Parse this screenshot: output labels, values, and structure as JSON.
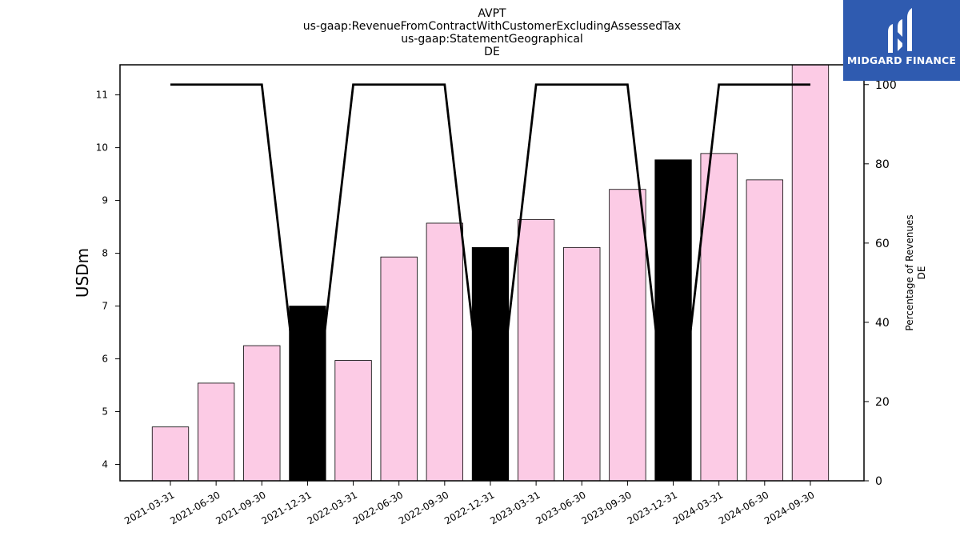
{
  "logo": {
    "text": "MIDGARD FINANCE",
    "icon": "midgard-logo-icon",
    "background": "#2f5bb0"
  },
  "chart_data": {
    "type": "bar",
    "title_lines": [
      "AVPT",
      "us-gaap:RevenueFromContractWithCustomerExcludingAssessedTax",
      "us-gaap:StatementGeographical",
      "DE"
    ],
    "categories": [
      "2021-03-31",
      "2021-06-30",
      "2021-09-30",
      "2021-12-31",
      "2022-03-31",
      "2022-06-30",
      "2022-09-30",
      "2022-12-31",
      "2023-03-31",
      "2023-06-30",
      "2023-09-30",
      "2023-12-31",
      "2024-03-31",
      "2024-06-30",
      "2024-09-30"
    ],
    "series": [
      {
        "type": "bar",
        "values": [
          4.71,
          5.54,
          6.25,
          7.0,
          5.97,
          7.93,
          8.57,
          8.11,
          8.64,
          8.11,
          9.21,
          9.77,
          9.89,
          9.39,
          11.57
        ],
        "colors": [
          "#fccbe5",
          "#fccbe5",
          "#fccbe5",
          "#000000",
          "#fccbe5",
          "#fccbe5",
          "#fccbe5",
          "#000000",
          "#fccbe5",
          "#fccbe5",
          "#fccbe5",
          "#000000",
          "#fccbe5",
          "#fccbe5",
          "#fccbe5"
        ]
      },
      {
        "type": "line",
        "axis": "right",
        "color": "#000000",
        "values": [
          100,
          100,
          100,
          0,
          100,
          100,
          100,
          0,
          100,
          100,
          100,
          0,
          100,
          100,
          100
        ]
      }
    ],
    "ylabel": "USDm",
    "ylabel_right": [
      "Percentage of Revenues",
      "DE"
    ],
    "ylim": [
      3.69,
      11.57
    ],
    "yticks": [
      4,
      5,
      6,
      7,
      8,
      9,
      10,
      11
    ],
    "ylim_right": [
      0,
      105
    ],
    "yticks_right": [
      0,
      20,
      40,
      60,
      80,
      100
    ],
    "grid": false,
    "legend": "none"
  }
}
